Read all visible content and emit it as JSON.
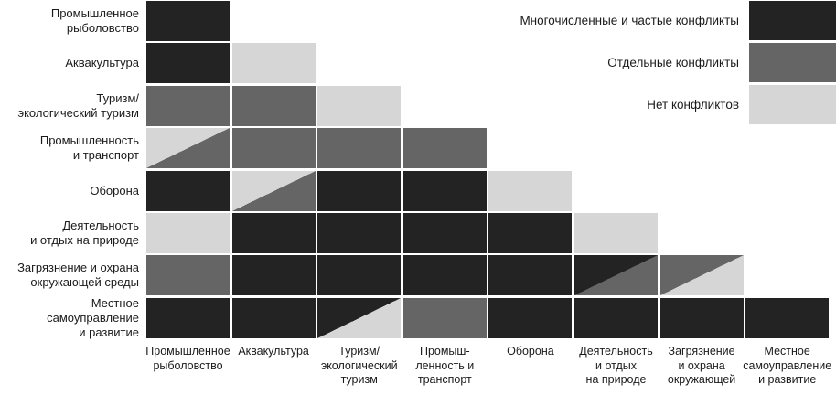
{
  "chart_data": {
    "type": "heatmap",
    "title": "",
    "legend_position": "top-right",
    "grid": true,
    "legend": [
      {
        "key": "high",
        "label": "Многочисленные и частые конфликты",
        "color": "#232323"
      },
      {
        "key": "some",
        "label": "Отдельные конфликты",
        "color": "#656565"
      },
      {
        "key": "none",
        "label": "Нет конфликтов",
        "color": "#d6d6d6"
      }
    ],
    "row_labels": [
      "Промышленное\nрыболовство",
      "Аквакультура",
      "Туризм/\nэкологический туризм",
      "Промышленность\nи транспорт",
      "Оборона",
      "Деятельность\nи отдых на природе",
      "Загрязнение и охрана\nокружающей среды",
      "Местное самоуправление\nи развитие"
    ],
    "col_labels": [
      "Промышленное\nрыболовство",
      "Аквакультура",
      "Туризм/\nэкологический\nтуризм",
      "Промыш-\nленность и\nтранспорт",
      "Оборона",
      "Деятельность\nи отдых\nна природе",
      "Загрязнение\nи охрана\nокружающей",
      "Местное\nсамоуправление\nи развитие"
    ],
    "cells": [
      [
        "high"
      ],
      [
        "high",
        "none"
      ],
      [
        "some",
        "some",
        "none"
      ],
      [
        "none/some",
        "some",
        "some",
        "some"
      ],
      [
        "high",
        "none/some",
        "high",
        "high",
        "none"
      ],
      [
        "none",
        "high",
        "high",
        "high",
        "high",
        "none"
      ],
      [
        "some",
        "high",
        "high",
        "high",
        "high",
        "high/some",
        "some/none"
      ],
      [
        "high",
        "high",
        "high/none",
        "some",
        "high",
        "high",
        "high",
        "high"
      ]
    ]
  }
}
